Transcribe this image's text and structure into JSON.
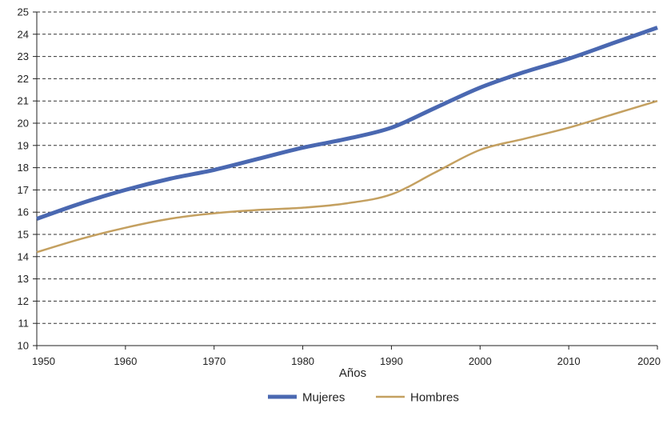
{
  "chart_data": {
    "type": "line",
    "title": "",
    "xlabel": "Años",
    "ylabel": "",
    "xlim": [
      1950,
      2020
    ],
    "ylim": [
      10,
      25
    ],
    "x_ticks": [
      1950,
      1960,
      1970,
      1980,
      1990,
      2000,
      2010,
      2020
    ],
    "y_ticks": [
      10,
      11,
      12,
      13,
      14,
      15,
      16,
      17,
      18,
      19,
      20,
      21,
      22,
      23,
      24,
      25
    ],
    "grid": "horizontal-dashed",
    "legend_position": "bottom-center",
    "x": [
      1950,
      1955,
      1960,
      1965,
      1970,
      1975,
      1980,
      1985,
      1990,
      1995,
      2000,
      2005,
      2010,
      2015,
      2020
    ],
    "series": [
      {
        "name": "Mujeres",
        "color": "#4a68b1",
        "values": [
          15.7,
          16.4,
          17.0,
          17.5,
          17.9,
          18.4,
          18.9,
          19.3,
          19.8,
          20.7,
          21.6,
          22.3,
          22.9,
          23.6,
          24.3
        ]
      },
      {
        "name": "Hombres",
        "color": "#c4a060",
        "values": [
          14.2,
          14.8,
          15.3,
          15.7,
          15.95,
          16.1,
          16.2,
          16.4,
          16.8,
          17.8,
          18.8,
          19.3,
          19.8,
          20.4,
          21.0
        ]
      }
    ]
  }
}
